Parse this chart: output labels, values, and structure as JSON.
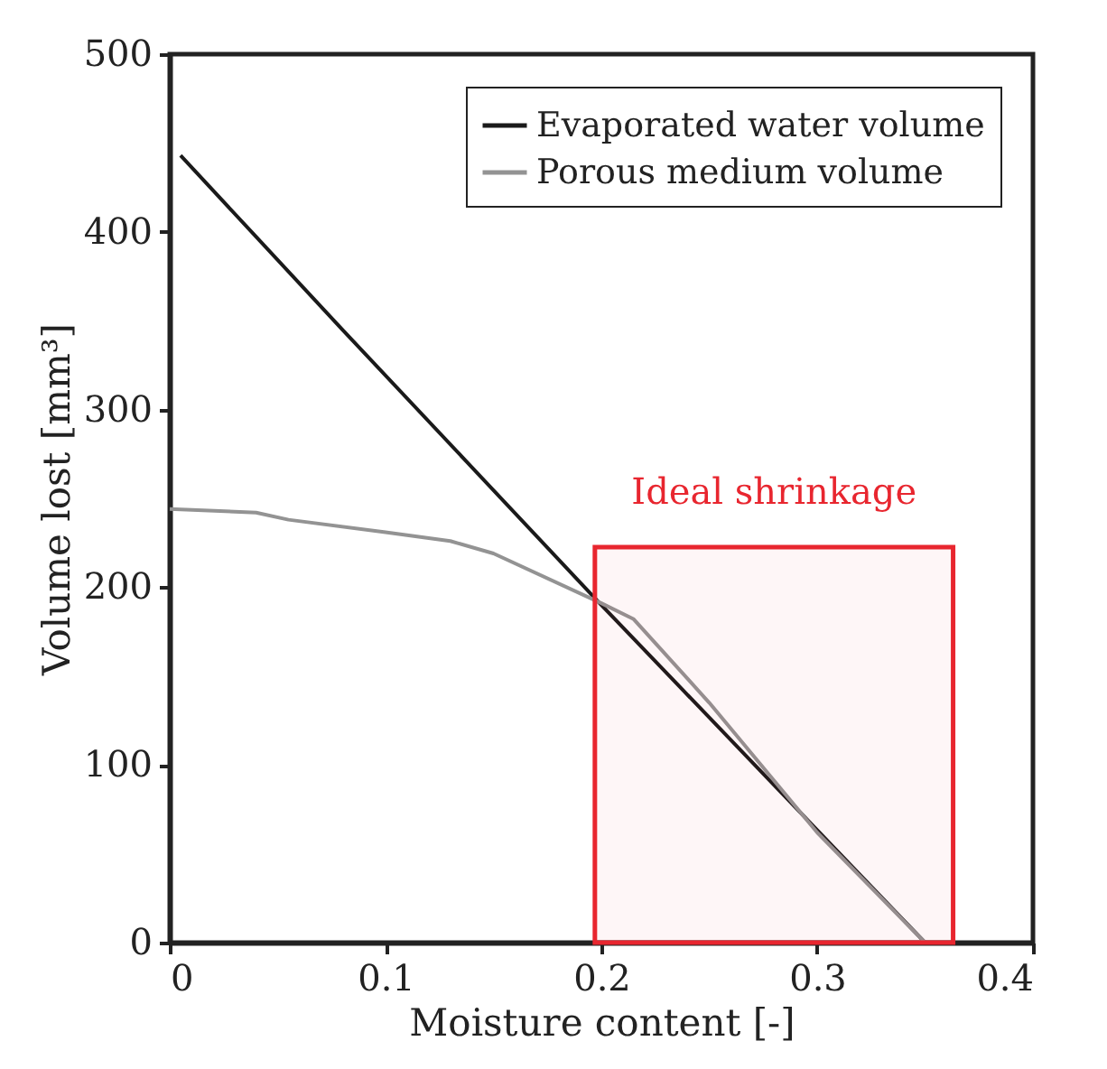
{
  "chart_data": {
    "type": "line",
    "xlabel": "Moisture content [-]",
    "ylabel": "Volume lost [mm³]",
    "xlim": [
      0,
      0.4
    ],
    "xticks": [
      0,
      0.1,
      0.2,
      0.3,
      0.4
    ],
    "ylim": [
      0,
      500
    ],
    "yticks": [
      0,
      100,
      200,
      300,
      400,
      500
    ],
    "grid": false,
    "legend": "top right",
    "marker": "none",
    "line_style": "solid",
    "series": [
      {
        "name": "Evaporated water volume",
        "color": "#1a1a1a",
        "x": [
          0.005,
          0.08,
          0.2,
          0.35
        ],
        "values": [
          443,
          345,
          190,
          0
        ]
      },
      {
        "name": "Porous medium volume",
        "color": "#939393",
        "x": [
          0,
          0.04,
          0.055,
          0.1,
          0.13,
          0.15,
          0.2,
          0.215,
          0.25,
          0.3,
          0.35
        ],
        "values": [
          244,
          242,
          238,
          231,
          226,
          219,
          191,
          182,
          135,
          62,
          0
        ]
      }
    ],
    "bands": [
      {
        "axis": "x",
        "from": 0.197,
        "to": 0.363,
        "color": "#e8262f",
        "label": "Ideal shrinkage"
      }
    ]
  }
}
